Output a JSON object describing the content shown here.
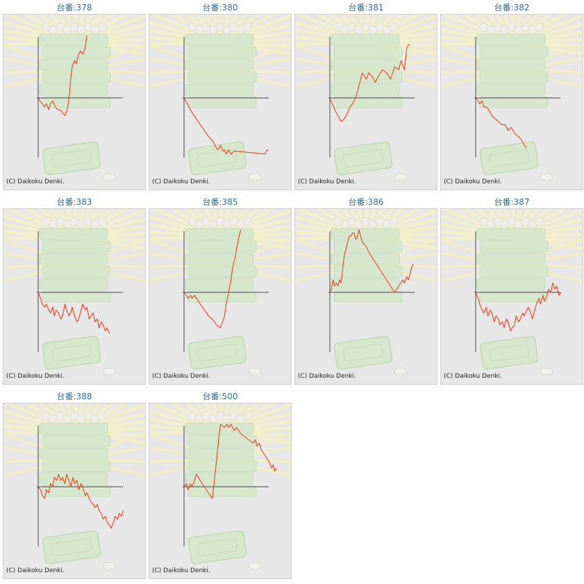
{
  "page": {
    "copyright": "(C) Daikoku Denki.",
    "line_color": "#e8401c",
    "axis_color": "#444444",
    "panel_background": "#e7e7e7",
    "title_color": "#2f6fa0"
  },
  "chart_data": [
    {
      "type": "line",
      "title": "台番:378",
      "x": [
        0,
        2,
        5,
        8,
        10,
        13,
        15,
        18,
        21,
        24,
        27,
        30,
        33,
        36,
        39,
        40,
        42,
        45,
        47,
        50,
        52,
        55,
        58,
        60
      ],
      "y": [
        0,
        -5,
        -10,
        -15,
        -10,
        -20,
        -10,
        -5,
        -15,
        -20,
        -20,
        -25,
        -30,
        -20,
        10,
        30,
        50,
        60,
        55,
        70,
        75,
        70,
        80,
        100
      ],
      "xlim": [
        0,
        120
      ],
      "ylim": [
        -100,
        100
      ]
    },
    {
      "type": "line",
      "title": "台番:380",
      "x": [
        0,
        2,
        6,
        10,
        15,
        20,
        25,
        30,
        35,
        40,
        42,
        45,
        48,
        50,
        52,
        55,
        58,
        62,
        100,
        102,
        104
      ],
      "y": [
        0,
        -5,
        -15,
        -25,
        -35,
        -45,
        -55,
        -65,
        -72,
        -85,
        -88,
        -80,
        -90,
        -88,
        -95,
        -88,
        -95,
        -90,
        -95,
        -88,
        -90
      ],
      "xlim": [
        0,
        120
      ],
      "ylim": [
        -100,
        100
      ]
    },
    {
      "type": "line",
      "title": "台番:381",
      "x": [
        0,
        3,
        6,
        10,
        14,
        18,
        22,
        25,
        28,
        32,
        36,
        40,
        45,
        48,
        52,
        56,
        60,
        65,
        70,
        75,
        80,
        85,
        88,
        92,
        95,
        97,
        99
      ],
      "y": [
        0,
        -10,
        -20,
        -30,
        -40,
        -35,
        -25,
        -15,
        -10,
        0,
        20,
        40,
        30,
        40,
        35,
        25,
        35,
        45,
        40,
        30,
        50,
        45,
        60,
        45,
        80,
        85,
        85
      ],
      "xlim": [
        0,
        120
      ],
      "ylim": [
        -100,
        100
      ]
    },
    {
      "type": "line",
      "title": "台番:382",
      "x": [
        0,
        3,
        5,
        8,
        10,
        13,
        16,
        20,
        24,
        28,
        32,
        36,
        40,
        44,
        48,
        52,
        56,
        60,
        63
      ],
      "y": [
        0,
        -5,
        -10,
        -5,
        -15,
        -15,
        -20,
        -30,
        -35,
        -40,
        -45,
        -45,
        -55,
        -50,
        -60,
        -65,
        -70,
        -80,
        -85
      ],
      "xlim": [
        0,
        120
      ],
      "ylim": [
        -100,
        100
      ]
    },
    {
      "type": "line",
      "title": "台番:383",
      "x": [
        0,
        3,
        5,
        8,
        10,
        13,
        15,
        18,
        20,
        22,
        25,
        28,
        30,
        33,
        35,
        38,
        40,
        42,
        45,
        48,
        50,
        52,
        55,
        58,
        60,
        63,
        65,
        68,
        70,
        73,
        75,
        78,
        80,
        83,
        85,
        88
      ],
      "y": [
        0,
        -10,
        -20,
        -25,
        -20,
        -30,
        -35,
        -25,
        -40,
        -30,
        -35,
        -45,
        -40,
        -20,
        -30,
        -40,
        -35,
        -25,
        -40,
        -50,
        -45,
        -35,
        -20,
        -30,
        -25,
        -45,
        -40,
        -35,
        -50,
        -45,
        -60,
        -50,
        -55,
        -65,
        -60,
        -70
      ],
      "xlim": [
        0,
        120
      ],
      "ylim": [
        -100,
        100
      ]
    },
    {
      "type": "line",
      "title": "台番:385",
      "x": [
        0,
        3,
        5,
        8,
        10,
        13,
        15,
        18,
        20,
        23,
        25,
        28,
        30,
        35,
        40,
        45,
        50,
        52,
        55,
        58,
        60,
        62,
        65,
        68,
        70
      ],
      "y": [
        0,
        -5,
        -10,
        -5,
        -10,
        -5,
        -10,
        -15,
        -20,
        -25,
        -30,
        -35,
        -40,
        -45,
        -55,
        -60,
        -40,
        -20,
        0,
        20,
        40,
        50,
        70,
        90,
        100
      ],
      "xlim": [
        0,
        120
      ],
      "ylim": [
        -100,
        100
      ]
    },
    {
      "type": "line",
      "title": "台番:386",
      "x": [
        0,
        2,
        4,
        6,
        8,
        10,
        12,
        14,
        16,
        18,
        20,
        22,
        24,
        26,
        28,
        30,
        32,
        34,
        36,
        40,
        44,
        46,
        50,
        55,
        60,
        65,
        70,
        75,
        80,
        85,
        90,
        92,
        95,
        97,
        99,
        101,
        103
      ],
      "y": [
        0,
        5,
        20,
        10,
        15,
        10,
        20,
        15,
        40,
        60,
        70,
        80,
        90,
        90,
        95,
        95,
        85,
        90,
        100,
        80,
        75,
        70,
        60,
        50,
        40,
        30,
        20,
        10,
        0,
        10,
        20,
        15,
        25,
        20,
        30,
        40,
        45
      ],
      "xlim": [
        0,
        120
      ],
      "ylim": [
        -100,
        100
      ]
    },
    {
      "type": "line",
      "title": "台番:387",
      "x": [
        0,
        3,
        5,
        8,
        10,
        13,
        15,
        18,
        20,
        23,
        25,
        28,
        30,
        33,
        35,
        38,
        40,
        43,
        45,
        48,
        50,
        53,
        55,
        58,
        60,
        63,
        65,
        68,
        70,
        73,
        75,
        78,
        80,
        83,
        85,
        88,
        90,
        93,
        95,
        98,
        100,
        103,
        105
      ],
      "y": [
        0,
        -10,
        -20,
        -30,
        -35,
        -25,
        -40,
        -30,
        -35,
        -50,
        -40,
        -45,
        -55,
        -50,
        -60,
        -45,
        -50,
        -65,
        -60,
        -55,
        -40,
        -50,
        -45,
        -35,
        -40,
        -30,
        -25,
        -35,
        -45,
        -30,
        -20,
        -10,
        -20,
        -5,
        -15,
        -5,
        5,
        0,
        15,
        5,
        10,
        -5,
        0
      ],
      "xlim": [
        0,
        120
      ],
      "ylim": [
        -100,
        100
      ]
    },
    {
      "type": "line",
      "title": "台番:388",
      "x": [
        0,
        3,
        5,
        8,
        10,
        13,
        15,
        18,
        20,
        23,
        25,
        28,
        30,
        33,
        35,
        38,
        40,
        43,
        45,
        48,
        50,
        53,
        55,
        58,
        60,
        63,
        65,
        68,
        70,
        73,
        75,
        78,
        80,
        83,
        85,
        88,
        90,
        93,
        95,
        98,
        100,
        103,
        105
      ],
      "y": [
        0,
        -5,
        -15,
        -20,
        -5,
        -10,
        5,
        0,
        15,
        10,
        20,
        10,
        15,
        5,
        20,
        10,
        0,
        15,
        5,
        10,
        -5,
        5,
        0,
        -15,
        -10,
        -20,
        -25,
        -30,
        -35,
        -30,
        -40,
        -45,
        -55,
        -50,
        -60,
        -65,
        -70,
        -60,
        -50,
        -55,
        -45,
        -50,
        -40
      ],
      "xlim": [
        0,
        120
      ],
      "ylim": [
        -100,
        100
      ]
    },
    {
      "type": "line",
      "title": "台番:500",
      "x": [
        0,
        3,
        5,
        8,
        10,
        13,
        15,
        18,
        20,
        25,
        30,
        35,
        40,
        43,
        45,
        50,
        53,
        55,
        58,
        62,
        65,
        70,
        75,
        80,
        85,
        88,
        90,
        93,
        95,
        100,
        105,
        108,
        110,
        112,
        114
      ],
      "y": [
        0,
        5,
        -5,
        5,
        0,
        10,
        20,
        15,
        10,
        0,
        -10,
        -20,
        40,
        80,
        100,
        95,
        100,
        95,
        100,
        90,
        95,
        85,
        80,
        75,
        70,
        75,
        65,
        70,
        60,
        50,
        40,
        30,
        35,
        25,
        30
      ],
      "xlim": [
        0,
        120
      ],
      "ylim": [
        -100,
        100
      ]
    }
  ]
}
